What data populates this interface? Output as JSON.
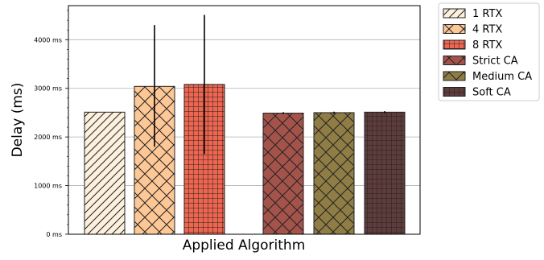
{
  "chart_data": {
    "type": "bar",
    "xlabel": "Applied Algorithm",
    "ylabel": "Delay (ms)",
    "ylim": [
      0,
      4700
    ],
    "yticks": [
      0,
      1000,
      2000,
      3000,
      4000
    ],
    "ytick_labels": [
      "0 ms",
      "1000 ms",
      "2000 ms",
      "3000 ms",
      "4000 ms"
    ],
    "grid": "horizontal",
    "legend_position": "outside-top-right",
    "series": [
      {
        "name": "1 RTX",
        "value": 2510,
        "err_low": 2510,
        "err_high": 2510,
        "color": "#fdf0dc",
        "hatch": "diagonal"
      },
      {
        "name": "4 RTX",
        "value": 3040,
        "err_low": 1800,
        "err_high": 4300,
        "color": "#fdc796",
        "hatch": "cross-diagonal"
      },
      {
        "name": "8 RTX",
        "value": 3080,
        "err_low": 1650,
        "err_high": 4510,
        "color": "#ee6550",
        "hatch": "grid"
      },
      {
        "name": "Strict CA",
        "value": 2490,
        "err_low": 2470,
        "err_high": 2510,
        "color": "#a4534a",
        "hatch": "cross-diagonal"
      },
      {
        "name": "Medium CA",
        "value": 2500,
        "err_low": 2480,
        "err_high": 2520,
        "color": "#8f7d45",
        "hatch": "cross-diagonal"
      },
      {
        "name": "Soft CA",
        "value": 2510,
        "err_low": 2490,
        "err_high": 2530,
        "color": "#5e3c3c",
        "hatch": "grid"
      }
    ]
  }
}
